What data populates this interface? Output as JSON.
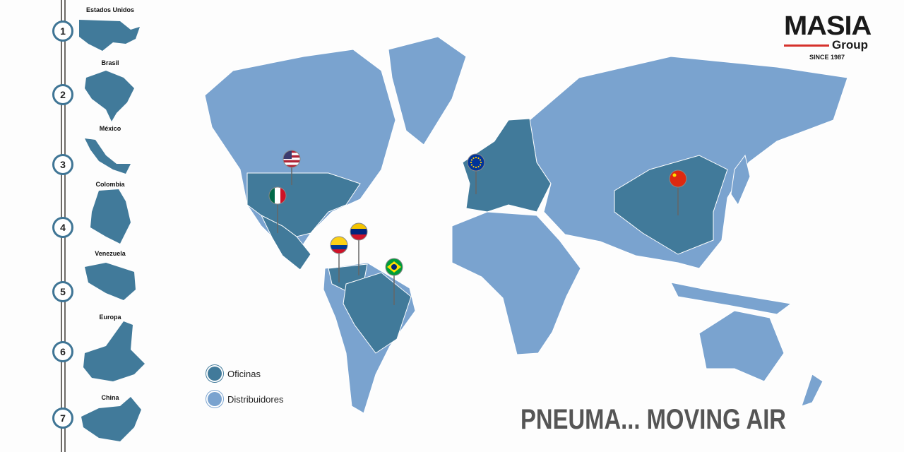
{
  "colors": {
    "offices": "#417a9a",
    "distributors": "#7aa3cf",
    "accent": "#d6322c"
  },
  "sidebar": {
    "items": [
      {
        "number": "1",
        "label": "Estados Unidos"
      },
      {
        "number": "2",
        "label": "Brasil"
      },
      {
        "number": "3",
        "label": "México"
      },
      {
        "number": "4",
        "label": "Colombia"
      },
      {
        "number": "5",
        "label": "Venezuela"
      },
      {
        "number": "6",
        "label": "Europa"
      },
      {
        "number": "7",
        "label": "China"
      }
    ]
  },
  "logo": {
    "name": "MASIA",
    "sub": "Group",
    "since": "SINCE 1987"
  },
  "legend": {
    "offices": "Oficinas",
    "distributors": "Distribuidores"
  },
  "pins": [
    "usa-flag",
    "mexico-flag",
    "colombia-flag",
    "venezuela-flag",
    "brazil-flag",
    "eu-flag",
    "china-flag"
  ],
  "slogan": "PNEUMA... MOVING AIR"
}
